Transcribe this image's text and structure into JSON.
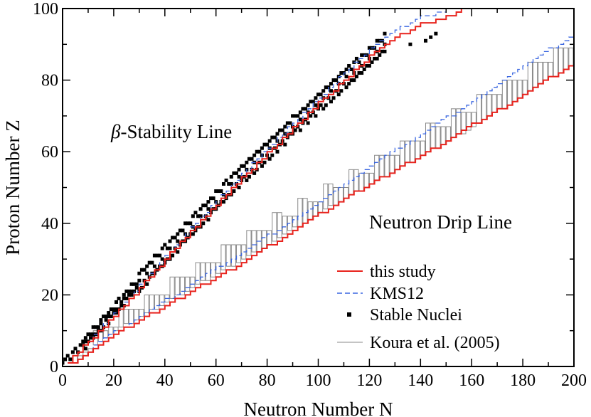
{
  "chart_data": {
    "type": "line",
    "xlabel": "Neutron Number N",
    "ylabel": "Proton Number Z",
    "xlim": [
      0,
      200
    ],
    "ylim": [
      0,
      100
    ],
    "x_ticks": [
      0,
      20,
      40,
      60,
      80,
      100,
      120,
      140,
      160,
      180,
      200
    ],
    "y_ticks": [
      0,
      20,
      40,
      60,
      80,
      100
    ],
    "x_minor_step": 10,
    "y_minor_step": 10,
    "grid": false,
    "legend_position": "bottom-right",
    "annotations": [
      {
        "name": "beta-stability-annotation",
        "greek": "β",
        "text": "-Stability Line",
        "x": 19,
        "y": 65
      },
      {
        "name": "drip-line-annotation",
        "text": "Neutron Drip Line",
        "x": 120,
        "y": 40
      }
    ],
    "series": [
      {
        "name": "this study",
        "style": "line",
        "color": "#e8231d",
        "segments": [
          {
            "x": [
              2,
              10,
              20,
              30,
              40,
              50,
              60,
              70,
              80,
              90,
              100,
              110,
              120,
              126,
              130,
              140,
              150,
              156
            ],
            "y": [
              1,
              7,
              14,
              22,
              30,
              37.5,
              45,
              52.5,
              59.5,
              66.5,
              73.5,
              80,
              86.5,
              89.5,
              92,
              95.5,
              97.5,
              100
            ]
          },
          {
            "x": [
              4,
              10,
              20,
              30,
              40,
              50,
              60,
              70,
              80,
              90,
              100,
              110,
              120,
              130,
              140,
              150,
              160,
              170,
              180,
              190,
              200
            ],
            "y": [
              1,
              4,
              9,
              13,
              17,
              21,
              25,
              29,
              33.5,
              38,
              42.5,
              47,
              51,
              55,
              59,
              63,
              67.5,
              71.5,
              76,
              80.5,
              85
            ]
          }
        ]
      },
      {
        "name": "KMS12",
        "style": "dashed",
        "color": "#3a66e0",
        "segments": [
          {
            "x": [
              2,
              10,
              20,
              30,
              40,
              50,
              60,
              70,
              80,
              90,
              100,
              110,
              120,
              130,
              140,
              150,
              153
            ],
            "y": [
              1.2,
              7.3,
              14.5,
              22.5,
              30.5,
              38.5,
              46,
              53.5,
              61,
              68,
              75,
              82,
              88.5,
              94,
              97.5,
              99.5,
              100
            ]
          },
          {
            "x": [
              4,
              10,
              20,
              30,
              40,
              50,
              60,
              70,
              80,
              90,
              100,
              110,
              120,
              130,
              140,
              150,
              160,
              170,
              180,
              190,
              200
            ],
            "y": [
              1.2,
              4.5,
              9.5,
              14,
              18.5,
              23,
              27.5,
              32,
              36.5,
              41,
              46,
              51,
              56,
              60.5,
              65,
              69.5,
              74,
              79,
              84,
              88.5,
              93
            ]
          }
        ]
      },
      {
        "name": "Stable Nuclei",
        "style": "markers",
        "color": "#000000",
        "x_range": [
          0,
          126
        ],
        "trend": {
          "x": [
            0,
            10,
            20,
            30,
            40,
            50,
            60,
            70,
            80,
            90,
            100,
            110,
            120,
            126
          ],
          "y": [
            1,
            7.5,
            15.5,
            23.5,
            31,
            38.5,
            46,
            53.5,
            60,
            67,
            73.5,
            80,
            86,
            90
          ]
        },
        "extra_points": [
          [
            142,
            91
          ],
          [
            144,
            92
          ],
          [
            146,
            93
          ],
          [
            136,
            90
          ]
        ]
      },
      {
        "name": "Koura et al. (2005)",
        "style": "boxes",
        "color": "#8a8a8a",
        "x_range": [
          4,
          198
        ],
        "lower": {
          "x": [
            4,
            20,
            40,
            60,
            80,
            100,
            120,
            140,
            160,
            180,
            200
          ],
          "y": [
            1,
            10,
            18,
            26,
            34,
            43,
            51,
            59,
            67,
            76,
            85
          ]
        },
        "upper": {
          "x": [
            4,
            20,
            40,
            60,
            80,
            100,
            120,
            140,
            160,
            180,
            200
          ],
          "y": [
            2,
            13,
            22,
            31,
            40,
            48,
            56,
            65,
            73,
            82,
            91
          ]
        }
      }
    ]
  }
}
